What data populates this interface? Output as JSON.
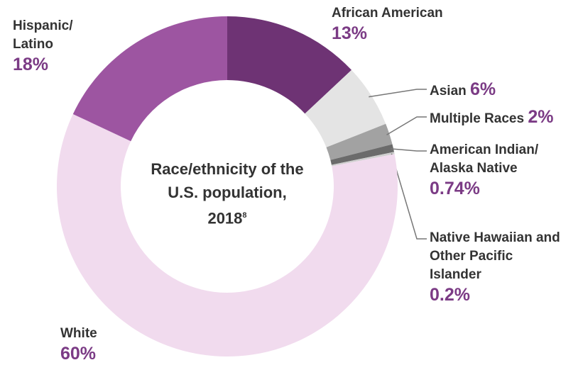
{
  "chart_data": {
    "type": "donut",
    "title": "Race/ethnicity of the U.S. population, 2018",
    "footnote": "8",
    "categories": [
      "African American",
      "Asian",
      "Multiple Races",
      "American Indian/ Alaska Native",
      "Native Hawaiian and Other Pacific Islander",
      "White",
      "Hispanic/ Latino"
    ],
    "values": [
      13,
      6,
      2,
      0.74,
      0.2,
      60,
      18
    ],
    "value_labels": [
      "13%",
      "6%",
      "2%",
      "0.74%",
      "0.2%",
      "60%",
      "18%"
    ],
    "colors": [
      "#6e3374",
      "#e4e4e4",
      "#a2a2a2",
      "#6b6b6b",
      "#cfcfcf",
      "#f1dbee",
      "#9d55a1"
    ]
  }
}
